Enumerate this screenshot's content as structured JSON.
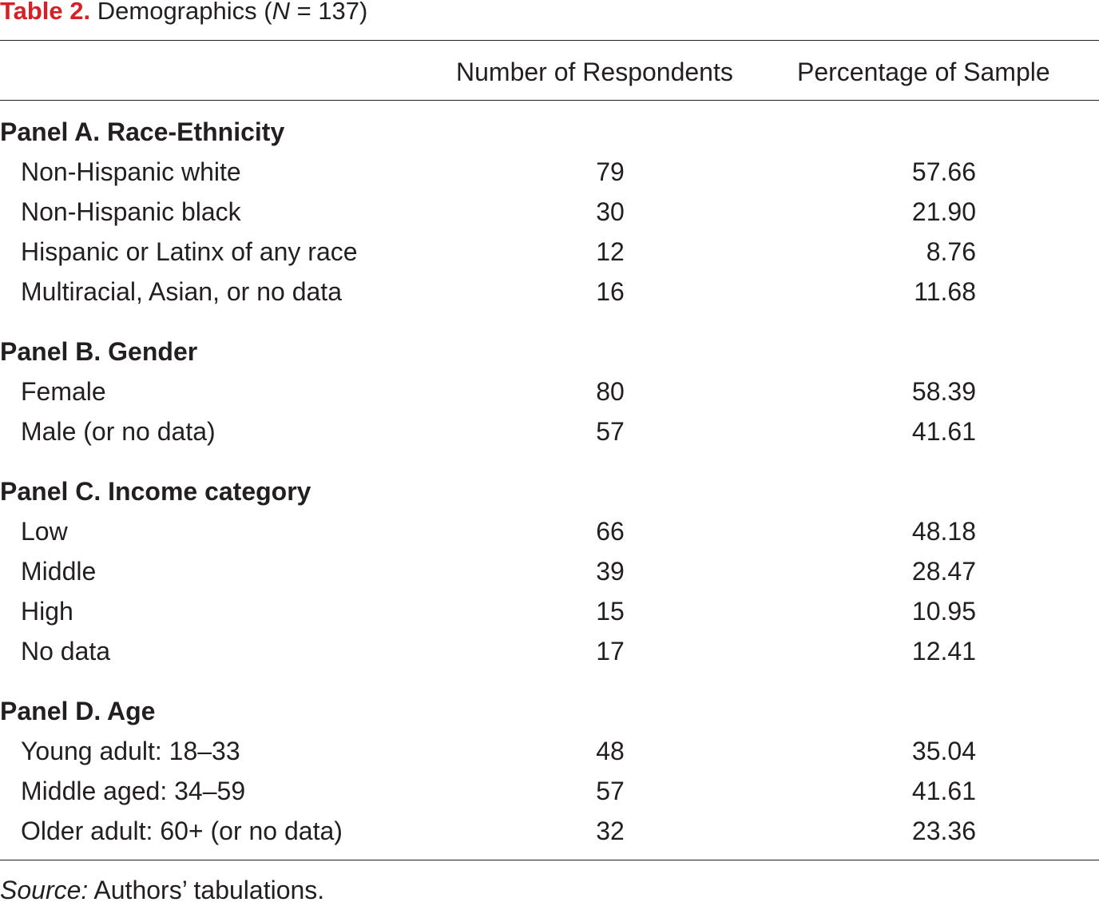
{
  "caption": {
    "label": "Table 2.",
    "title_prefix": " Demographics (",
    "n_symbol": "N",
    "title_suffix": " = 137)"
  },
  "headers": {
    "respondents": "Number of Respondents",
    "percentage": "Percentage of Sample"
  },
  "panels": [
    {
      "title": "Panel A. Race-Ethnicity",
      "rows": [
        {
          "label": "Non-Hispanic white",
          "count": "79",
          "pct": "57.66"
        },
        {
          "label": "Non-Hispanic black",
          "count": "30",
          "pct": "21.90"
        },
        {
          "label": "Hispanic or Latinx of any race",
          "count": "12",
          "pct": "8.76"
        },
        {
          "label": "Multiracial, Asian, or no data",
          "count": "16",
          "pct": "11.68"
        }
      ]
    },
    {
      "title": "Panel B. Gender",
      "rows": [
        {
          "label": "Female",
          "count": "80",
          "pct": "58.39"
        },
        {
          "label": "Male (or no data)",
          "count": "57",
          "pct": "41.61"
        }
      ]
    },
    {
      "title": "Panel C. Income category",
      "rows": [
        {
          "label": "Low",
          "count": "66",
          "pct": "48.18"
        },
        {
          "label": "Middle",
          "count": "39",
          "pct": "28.47"
        },
        {
          "label": "High",
          "count": "15",
          "pct": "10.95"
        },
        {
          "label": "No data",
          "count": "17",
          "pct": "12.41"
        }
      ]
    },
    {
      "title": "Panel D. Age",
      "rows": [
        {
          "label": "Young adult: 18–33",
          "count": "48",
          "pct": "35.04"
        },
        {
          "label": "Middle aged: 34–59",
          "count": "57",
          "pct": "41.61"
        },
        {
          "label": "Older adult: 60+ (or no data)",
          "count": "32",
          "pct": "23.36"
        }
      ]
    }
  ],
  "source": {
    "label": "Source:",
    "text": " Authors’ tabulations."
  },
  "colors": {
    "accent": "#d71f26",
    "text": "#231f20"
  }
}
